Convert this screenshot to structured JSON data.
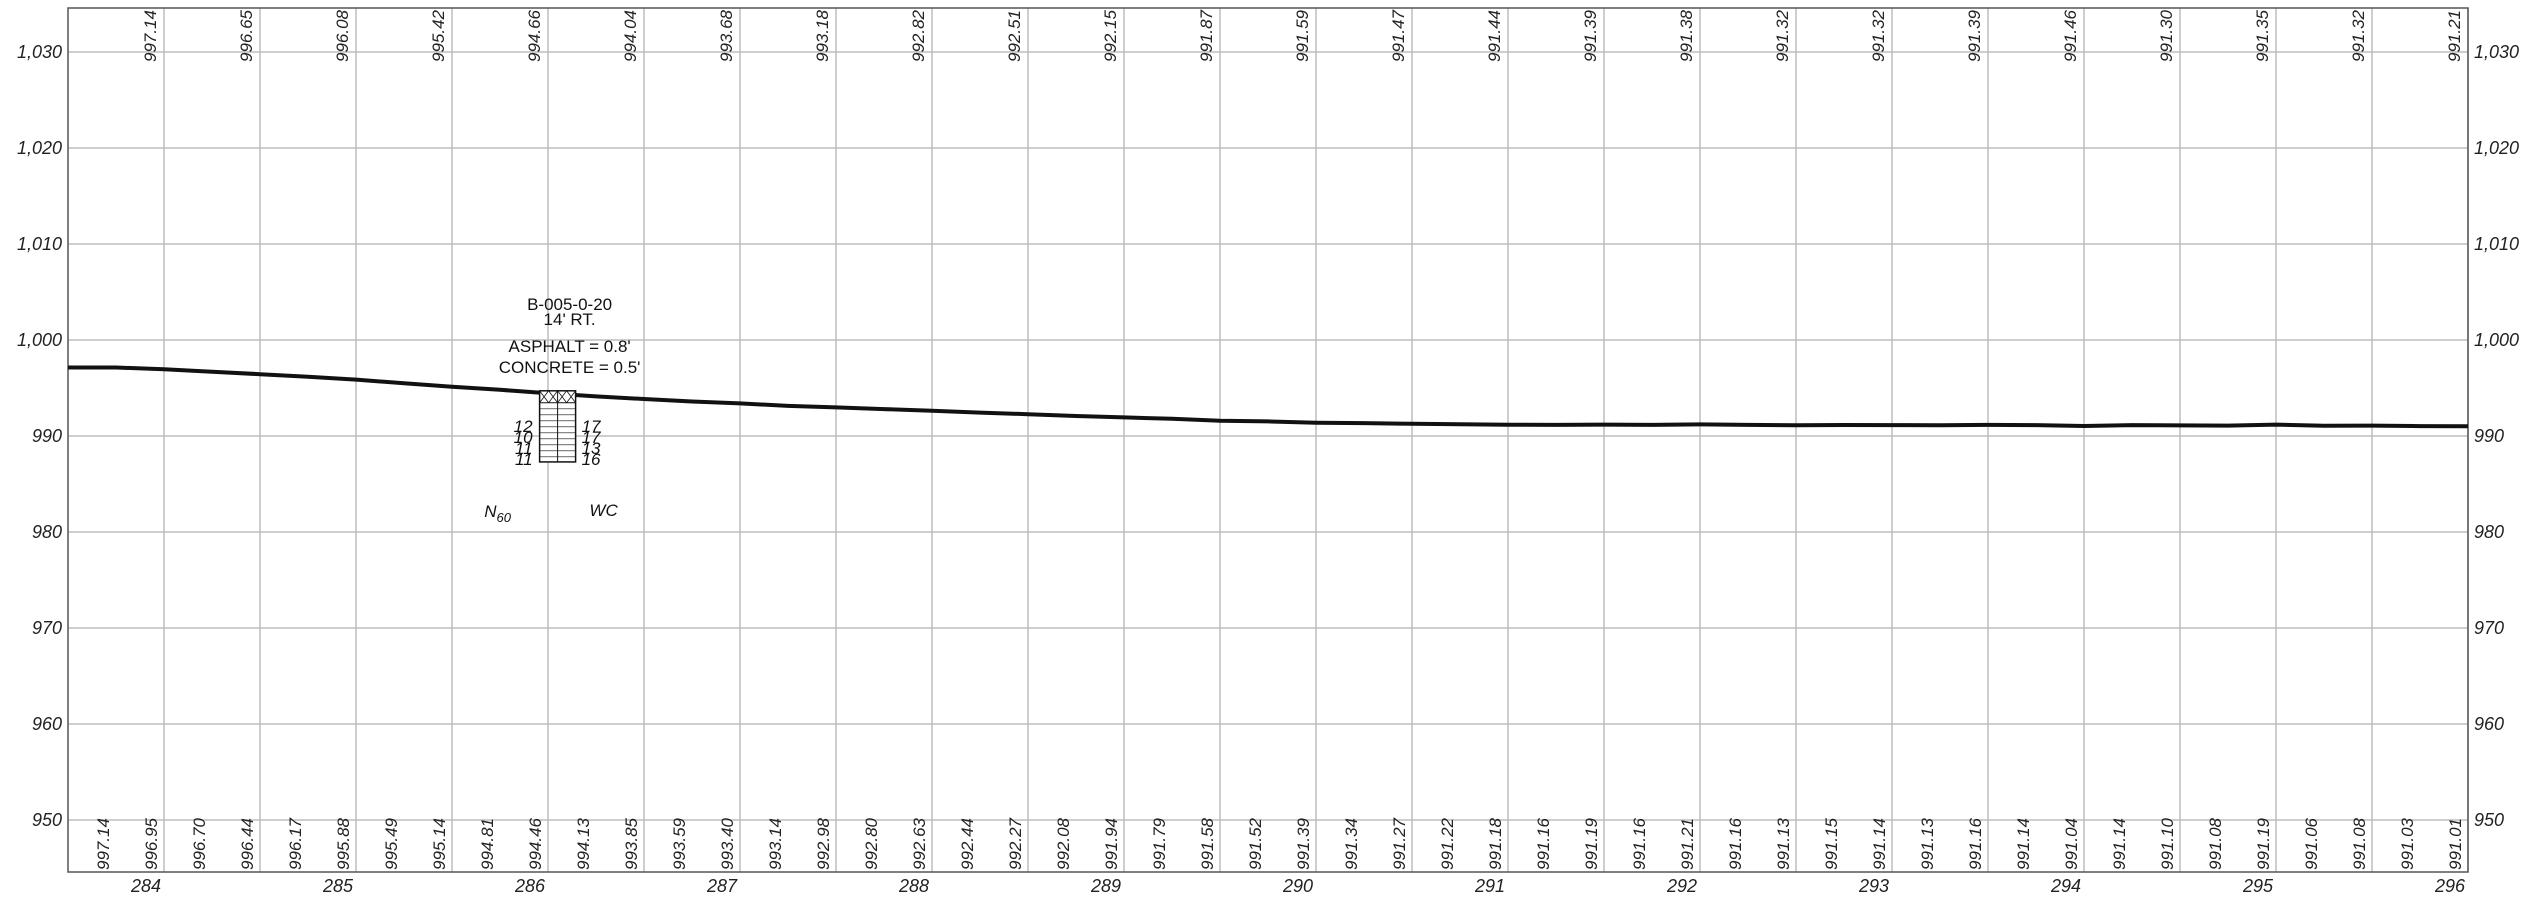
{
  "profile": {
    "elevation_axis": {
      "min": 950,
      "max": 1030,
      "ticks": [
        "950",
        "960",
        "970",
        "980",
        "990",
        "1,000",
        "1,010",
        "1,020",
        "1,030"
      ]
    },
    "station_axis": {
      "min": 283.5,
      "max": 296,
      "labels": [
        "284",
        "285",
        "286",
        "287",
        "288",
        "289",
        "290",
        "291",
        "292",
        "293",
        "294",
        "295",
        "296"
      ]
    },
    "top_values": [
      {
        "sta": 284,
        "v": "997.14"
      },
      {
        "sta": 284.5,
        "v": "996.65"
      },
      {
        "sta": 285,
        "v": "996.08"
      },
      {
        "sta": 285.5,
        "v": "995.42"
      },
      {
        "sta": 286,
        "v": "994.66"
      },
      {
        "sta": 286.5,
        "v": "994.04"
      },
      {
        "sta": 287,
        "v": "993.68"
      },
      {
        "sta": 287.5,
        "v": "993.18"
      },
      {
        "sta": 288,
        "v": "992.82"
      },
      {
        "sta": 288.5,
        "v": "992.51"
      },
      {
        "sta": 289,
        "v": "992.15"
      },
      {
        "sta": 289.5,
        "v": "991.87"
      },
      {
        "sta": 290,
        "v": "991.59"
      },
      {
        "sta": 290.5,
        "v": "991.47"
      },
      {
        "sta": 291,
        "v": "991.44"
      },
      {
        "sta": 291.5,
        "v": "991.39"
      },
      {
        "sta": 292,
        "v": "991.38"
      },
      {
        "sta": 292.5,
        "v": "991.32"
      },
      {
        "sta": 293,
        "v": "991.32"
      },
      {
        "sta": 293.5,
        "v": "991.39"
      },
      {
        "sta": 294,
        "v": "991.46"
      },
      {
        "sta": 294.5,
        "v": "991.30"
      },
      {
        "sta": 295,
        "v": "991.35"
      },
      {
        "sta": 295.5,
        "v": "991.32"
      },
      {
        "sta": 296,
        "v": "991.21"
      }
    ],
    "bottom_values": [
      {
        "sta": 283.75,
        "v": "997.14"
      },
      {
        "sta": 284,
        "v": "996.95"
      },
      {
        "sta": 284.25,
        "v": "996.70"
      },
      {
        "sta": 284.5,
        "v": "996.44"
      },
      {
        "sta": 284.75,
        "v": "996.17"
      },
      {
        "sta": 285,
        "v": "995.88"
      },
      {
        "sta": 285.25,
        "v": "995.49"
      },
      {
        "sta": 285.5,
        "v": "995.14"
      },
      {
        "sta": 285.75,
        "v": "994.81"
      },
      {
        "sta": 286,
        "v": "994.46"
      },
      {
        "sta": 286.25,
        "v": "994.13"
      },
      {
        "sta": 286.5,
        "v": "993.85"
      },
      {
        "sta": 286.75,
        "v": "993.59"
      },
      {
        "sta": 287,
        "v": "993.40"
      },
      {
        "sta": 287.25,
        "v": "993.14"
      },
      {
        "sta": 287.5,
        "v": "992.98"
      },
      {
        "sta": 287.75,
        "v": "992.80"
      },
      {
        "sta": 288,
        "v": "992.63"
      },
      {
        "sta": 288.25,
        "v": "992.44"
      },
      {
        "sta": 288.5,
        "v": "992.27"
      },
      {
        "sta": 288.75,
        "v": "992.08"
      },
      {
        "sta": 289,
        "v": "991.94"
      },
      {
        "sta": 289.25,
        "v": "991.79"
      },
      {
        "sta": 289.5,
        "v": "991.58"
      },
      {
        "sta": 289.75,
        "v": "991.52"
      },
      {
        "sta": 290,
        "v": "991.39"
      },
      {
        "sta": 290.25,
        "v": "991.34"
      },
      {
        "sta": 290.5,
        "v": "991.27"
      },
      {
        "sta": 290.75,
        "v": "991.22"
      },
      {
        "sta": 291,
        "v": "991.18"
      },
      {
        "sta": 291.25,
        "v": "991.16"
      },
      {
        "sta": 291.5,
        "v": "991.19"
      },
      {
        "sta": 291.75,
        "v": "991.16"
      },
      {
        "sta": 292,
        "v": "991.21"
      },
      {
        "sta": 292.25,
        "v": "991.16"
      },
      {
        "sta": 292.5,
        "v": "991.13"
      },
      {
        "sta": 292.75,
        "v": "991.15"
      },
      {
        "sta": 293,
        "v": "991.14"
      },
      {
        "sta": 293.25,
        "v": "991.13"
      },
      {
        "sta": 293.5,
        "v": "991.16"
      },
      {
        "sta": 293.75,
        "v": "991.14"
      },
      {
        "sta": 294,
        "v": "991.04"
      },
      {
        "sta": 294.25,
        "v": "991.14"
      },
      {
        "sta": 294.5,
        "v": "991.10"
      },
      {
        "sta": 294.75,
        "v": "991.08"
      },
      {
        "sta": 295,
        "v": "991.19"
      },
      {
        "sta": 295.25,
        "v": "991.06"
      },
      {
        "sta": 295.5,
        "v": "991.08"
      },
      {
        "sta": 295.75,
        "v": "991.03"
      },
      {
        "sta": 296,
        "v": "991.01"
      }
    ],
    "boring": {
      "id": "B-005-0-20",
      "offset": "14' RT.",
      "asphalt": "ASPHALT = 0.8'",
      "concrete": "CONCRETE = 0.5'",
      "station": 286.05,
      "top_elev": 994.5,
      "bottom_elev": 987.3,
      "n60": [
        "12",
        "10",
        "11",
        "11"
      ],
      "wc": [
        "17",
        "17",
        "13",
        "16"
      ],
      "n60_label_main": "N",
      "n60_label_sub": "60",
      "wc_label": "WC"
    }
  }
}
